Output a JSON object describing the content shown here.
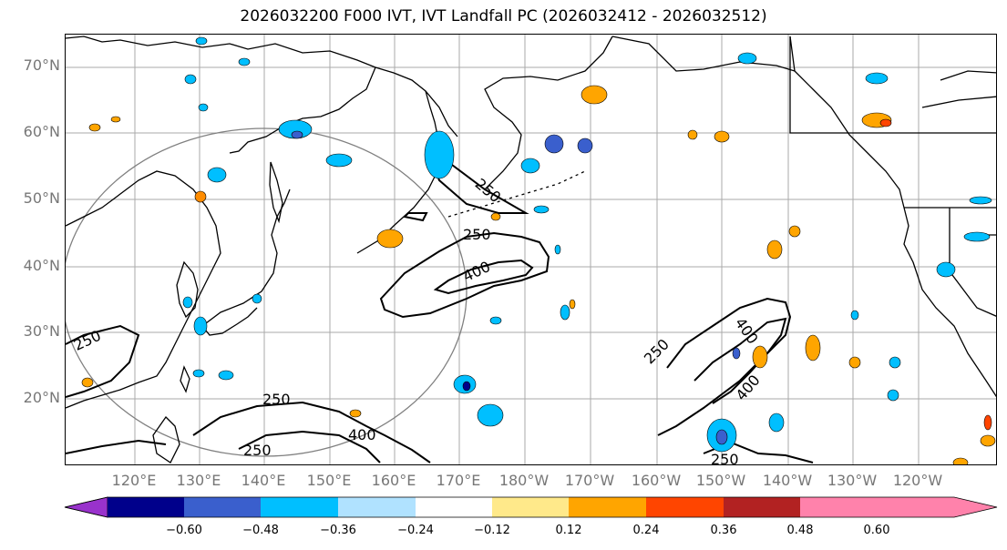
{
  "title": "2026032200 F000 IVT, IVT Landfall PC (2026032412 - 2026032512)",
  "lat_labels": [
    "70°N",
    "60°N",
    "50°N",
    "40°N",
    "30°N",
    "20°N"
  ],
  "lon_labels": [
    "120°E",
    "130°E",
    "140°E",
    "150°E",
    "160°E",
    "170°E",
    "180°W",
    "170°W",
    "160°W",
    "150°W",
    "140°W",
    "130°W",
    "120°W"
  ],
  "contour_labels": [
    "250",
    "250",
    "400",
    "250",
    "250",
    "250",
    "400",
    "250",
    "400",
    "400",
    "250"
  ],
  "colorbar": {
    "ticks": [
      "−0.60",
      "−0.48",
      "−0.36",
      "−0.24",
      "−0.12",
      "0.12",
      "0.24",
      "0.36",
      "0.48",
      "0.60"
    ],
    "colors": [
      "#9932cc",
      "#00008b",
      "#3a5fcd",
      "#00bfff",
      "#b0e2ff",
      "#ffffff",
      "#ffe98a",
      "#ffa500",
      "#ff4500",
      "#b22222",
      "#ff82ab"
    ]
  },
  "colors": {
    "land_line": "#000000",
    "grid": "#999999",
    "circle": "#808080",
    "ivt_contour": "#000000"
  }
}
